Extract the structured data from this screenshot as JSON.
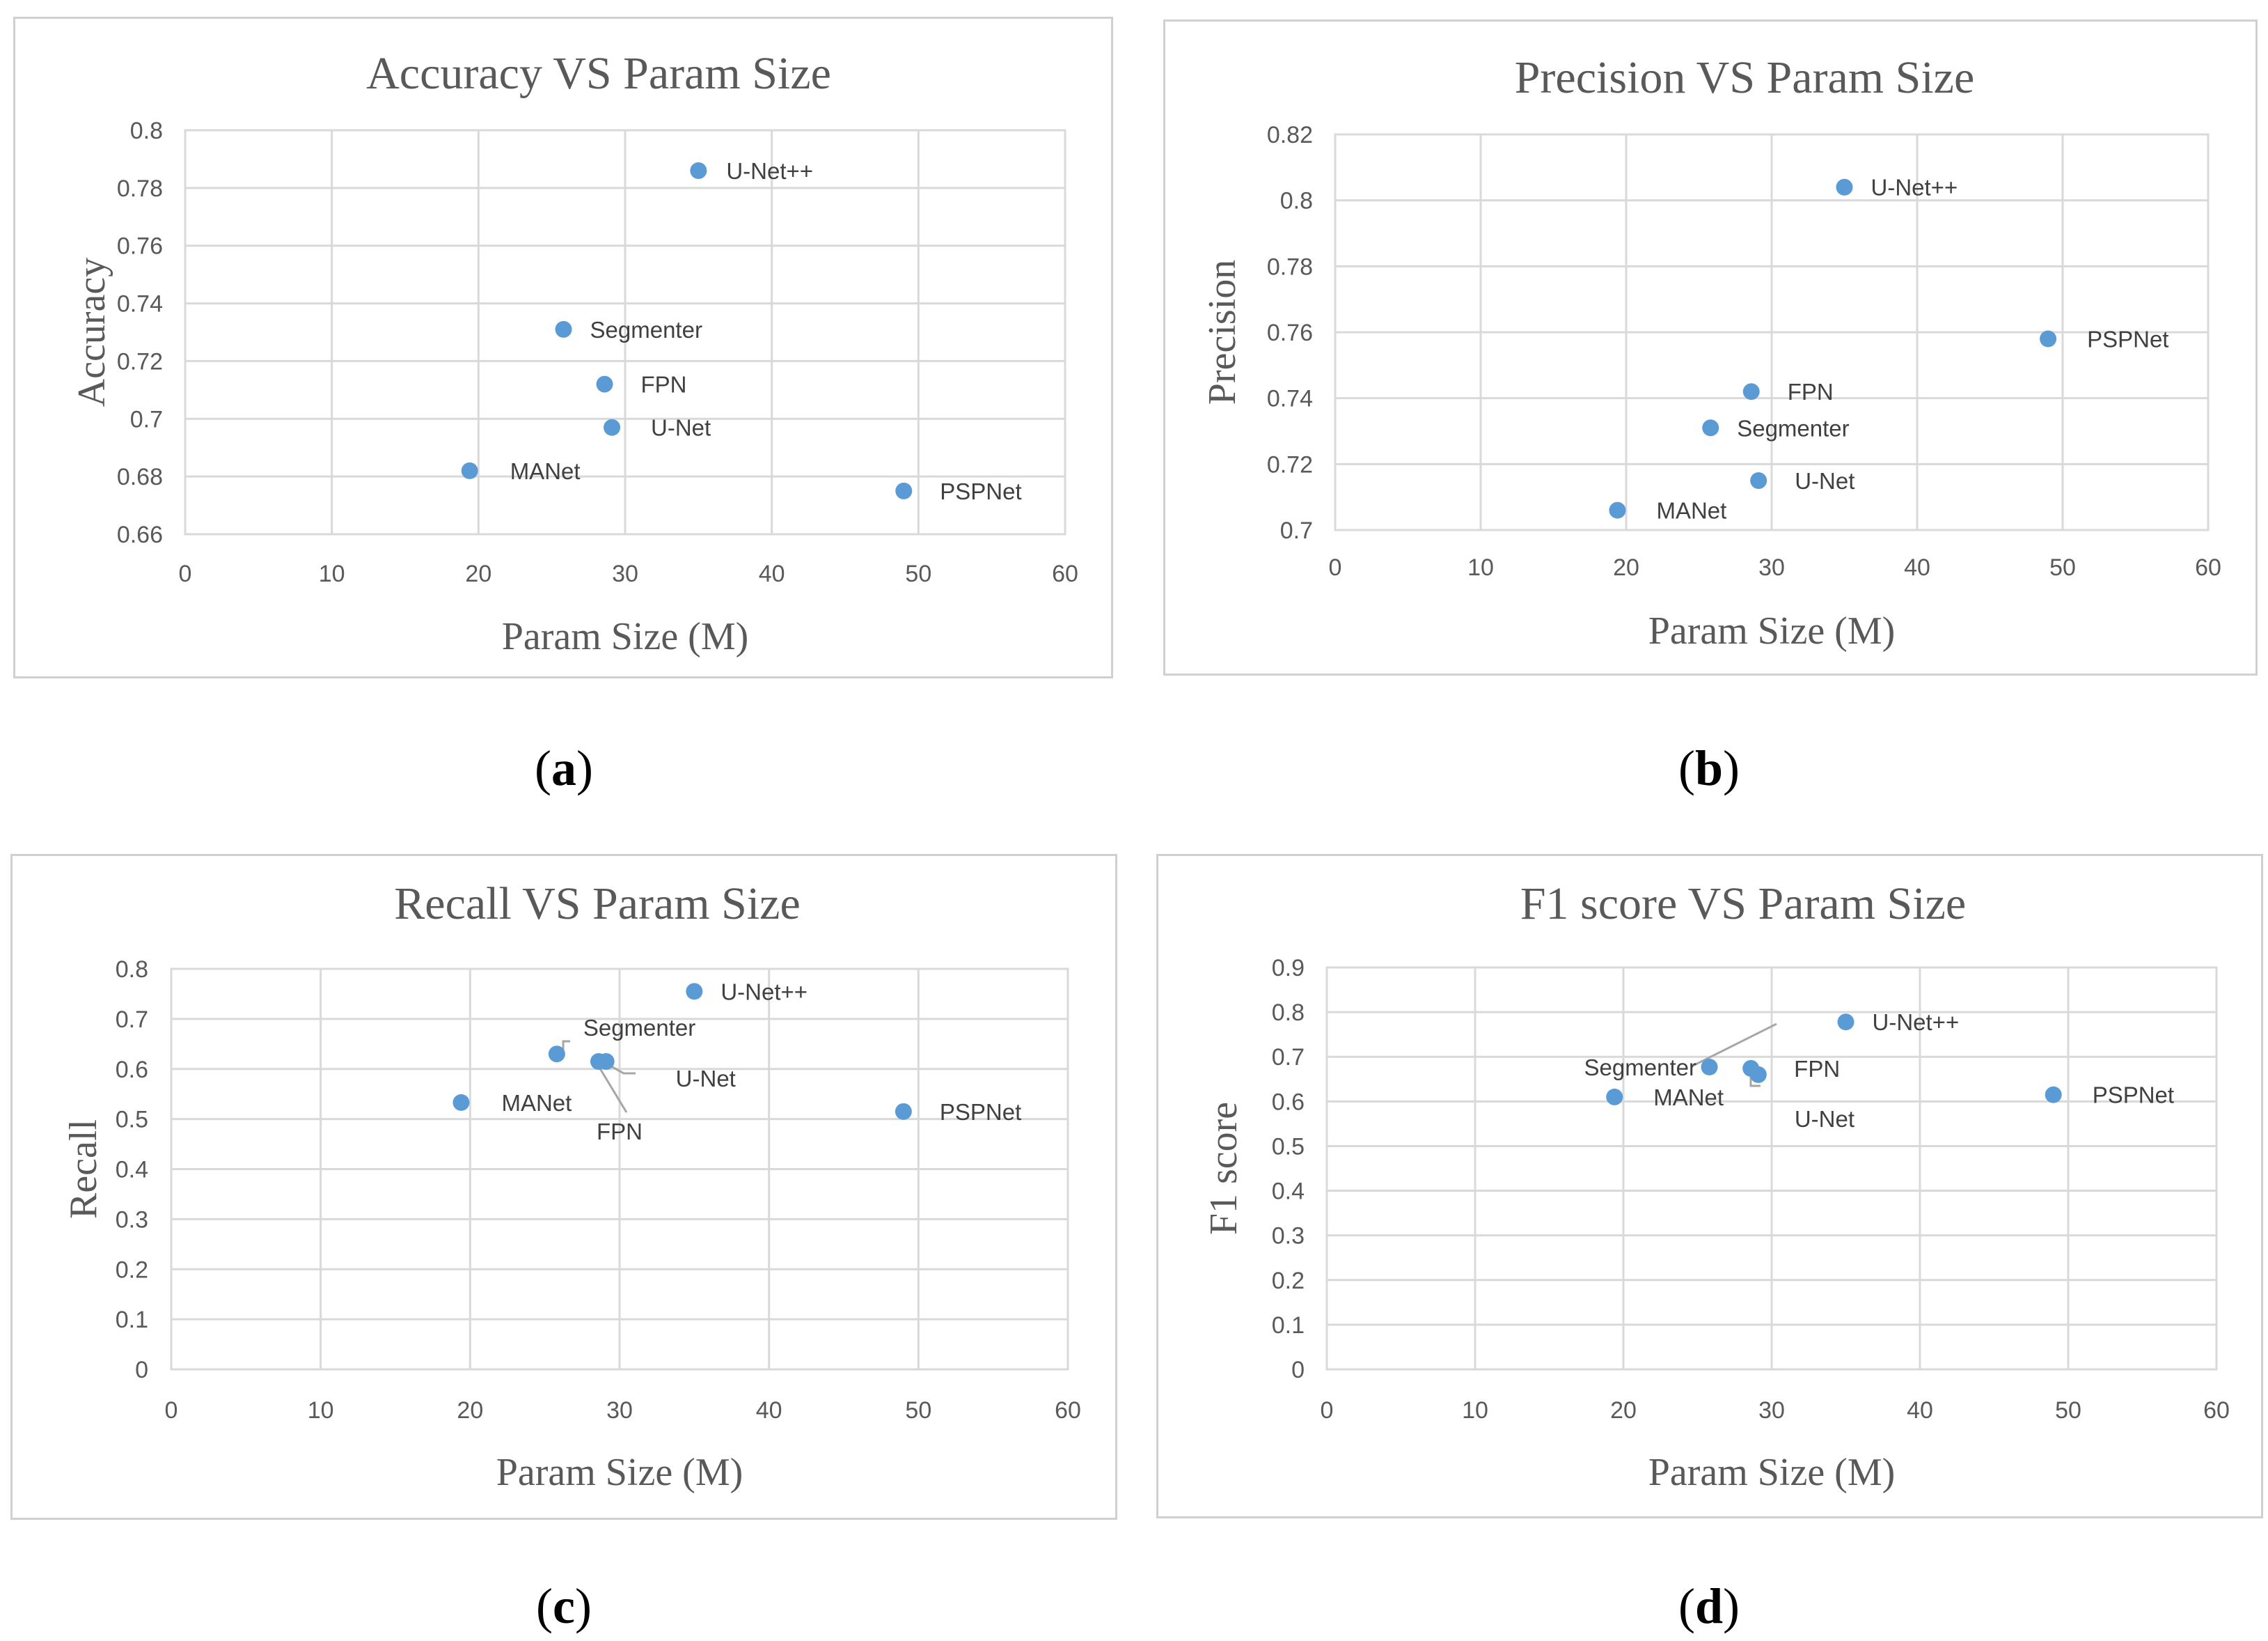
{
  "captions": [
    "a",
    "b",
    "c",
    "d"
  ],
  "point_color": "#5b9bd5",
  "chart_data": [
    {
      "type": "scatter",
      "title": "Accuracy VS Param Size",
      "xlabel": "Param Size (M)",
      "ylabel": "Accuracy",
      "xlim": [
        0,
        60
      ],
      "ylim": [
        0.66,
        0.8
      ],
      "xticks": [
        "0",
        "10",
        "20",
        "30",
        "40",
        "50",
        "60"
      ],
      "yticks": [
        "0.66",
        "0.68",
        "0.7",
        "0.72",
        "0.74",
        "0.76",
        "0.78",
        "0.8"
      ],
      "grid": true,
      "points": [
        {
          "name": "U-Net++",
          "x": 35,
          "y": 0.786
        },
        {
          "name": "Segmenter",
          "x": 25.8,
          "y": 0.731
        },
        {
          "name": "FPN",
          "x": 28.6,
          "y": 0.712
        },
        {
          "name": "U-Net",
          "x": 29.1,
          "y": 0.697
        },
        {
          "name": "MANet",
          "x": 19.4,
          "y": 0.682
        },
        {
          "name": "PSPNet",
          "x": 49,
          "y": 0.675
        }
      ]
    },
    {
      "type": "scatter",
      "title": "Precision VS Param Size",
      "xlabel": "Param Size (M)",
      "ylabel": "Precision",
      "xlim": [
        0,
        60
      ],
      "ylim": [
        0.7,
        0.82
      ],
      "xticks": [
        "0",
        "10",
        "20",
        "30",
        "40",
        "50",
        "60"
      ],
      "yticks": [
        "0.7",
        "0.72",
        "0.74",
        "0.76",
        "0.78",
        "0.8",
        "0.82"
      ],
      "grid": true,
      "points": [
        {
          "name": "U-Net++",
          "x": 35,
          "y": 0.804
        },
        {
          "name": "PSPNet",
          "x": 49,
          "y": 0.758
        },
        {
          "name": "FPN",
          "x": 28.6,
          "y": 0.742
        },
        {
          "name": "Segmenter",
          "x": 25.8,
          "y": 0.731
        },
        {
          "name": "U-Net",
          "x": 29.1,
          "y": 0.715
        },
        {
          "name": "MANet",
          "x": 19.4,
          "y": 0.706
        }
      ]
    },
    {
      "type": "scatter",
      "title": "Recall VS Param Size",
      "xlabel": "Param Size (M)",
      "ylabel": "Recall",
      "xlim": [
        0,
        60
      ],
      "ylim": [
        0,
        0.8
      ],
      "xticks": [
        "0",
        "10",
        "20",
        "30",
        "40",
        "50",
        "60"
      ],
      "yticks": [
        "0",
        "0.1",
        "0.2",
        "0.3",
        "0.4",
        "0.5",
        "0.6",
        "0.7",
        "0.8"
      ],
      "grid": true,
      "points": [
        {
          "name": "U-Net++",
          "x": 35,
          "y": 0.755
        },
        {
          "name": "Segmenter",
          "x": 25.8,
          "y": 0.63
        },
        {
          "name": "U-Net",
          "x": 29.1,
          "y": 0.615
        },
        {
          "name": "FPN",
          "x": 28.6,
          "y": 0.615
        },
        {
          "name": "MANet",
          "x": 19.4,
          "y": 0.533
        },
        {
          "name": "PSPNet",
          "x": 49,
          "y": 0.515
        }
      ]
    },
    {
      "type": "scatter",
      "title": "F1 score VS Param Size",
      "xlabel": "Param Size (M)",
      "ylabel": "F1 score",
      "xlim": [
        0,
        60
      ],
      "ylim": [
        0,
        0.9
      ],
      "xticks": [
        "0",
        "10",
        "20",
        "30",
        "40",
        "50",
        "60"
      ],
      "yticks": [
        "0",
        "0.1",
        "0.2",
        "0.3",
        "0.4",
        "0.5",
        "0.6",
        "0.7",
        "0.8",
        "0.9"
      ],
      "grid": true,
      "points": [
        {
          "name": "Segmenter",
          "x": 25.8,
          "y": 0.677
        },
        {
          "name": "U-Net++",
          "x": 35,
          "y": 0.778
        },
        {
          "name": "FPN",
          "x": 28.6,
          "y": 0.674
        },
        {
          "name": "MANet",
          "x": 19.4,
          "y": 0.61
        },
        {
          "name": "U-Net",
          "x": 29.1,
          "y": 0.66
        },
        {
          "name": "PSPNet",
          "x": 49,
          "y": 0.615
        }
      ]
    }
  ]
}
